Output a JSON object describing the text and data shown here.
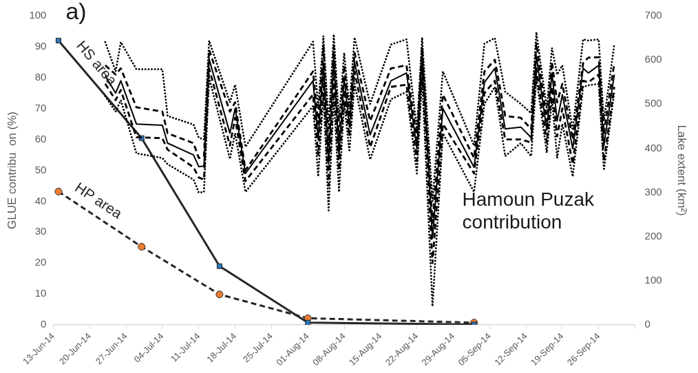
{
  "chart_data": {
    "type": "line",
    "title": "a)",
    "ylabel": "GLUE contribu  on (%)",
    "y2label": "Lake extent (km²)",
    "annotations": [
      "Hamoun Puzak contribution"
    ],
    "x": [
      "--06-23",
      "--06-25",
      "--06-26",
      "--06-29",
      "--07-04",
      "--07-05",
      "--07-10",
      "--07-11",
      "--07-12",
      "--07-13",
      "--07-17",
      "--07-18",
      "--07-20",
      "--08-02",
      "--08-03",
      "--08-04",
      "--08-05",
      "--08-06",
      "--08-07",
      "--08-08",
      "--08-09",
      "--08-10",
      "--08-13",
      "--08-17",
      "--08-20",
      "--08-22",
      "--08-23",
      "--08-25",
      "--08-27",
      "--09-02",
      "--09-04",
      "--09-06",
      "--09-08",
      "--09-11",
      "--09-13",
      "--09-14",
      "--09-16",
      "--09-17",
      "--09-18",
      "--09-19",
      "--09-21",
      "--09-23",
      "--09-24",
      "--09-26",
      "--09-27",
      "--09-29"
    ],
    "series": [
      {
        "color": "#000000",
        "line_style": "dotted",
        "marker": "none",
        "values": [
          91.5,
          82,
          91.5,
          82.7,
          82.7,
          67.6,
          64.8,
          60.6,
          60,
          92,
          72,
          77.7,
          57.6,
          91.6,
          70,
          93.5,
          65,
          94,
          66,
          88,
          70,
          93,
          71.5,
          90.7,
          92.4,
          63,
          93,
          40,
          82,
          58,
          91,
          92.8,
          75.4,
          71.5,
          68.5,
          94.7,
          70,
          89.6,
          81,
          84,
          63,
          92.4,
          92,
          92.4,
          66,
          90.7
        ]
      },
      {
        "color": "#000000",
        "line_style": "dashed",
        "marker": "none",
        "values": [
          84,
          81,
          83,
          70.4,
          69,
          62,
          58.8,
          54,
          54.5,
          89,
          69,
          72,
          50,
          82,
          65,
          90,
          58,
          90,
          60,
          84,
          67,
          88,
          66,
          83,
          84,
          60,
          90,
          33,
          74.5,
          54,
          82,
          85.8,
          67.6,
          67,
          63.4,
          91,
          66,
          85,
          72,
          78,
          60,
          84.7,
          86.5,
          86.6,
          62,
          84.7
        ]
      },
      {
        "color": "#000000",
        "line_style": "solid",
        "marker": "none",
        "values": [
          80.6,
          75,
          79,
          65,
          64.6,
          58.8,
          55,
          51.2,
          51.4,
          86,
          62,
          70,
          49,
          79,
          60,
          85,
          52,
          86,
          55,
          80,
          64,
          85,
          61.5,
          79,
          81.5,
          57,
          88,
          28,
          70,
          51,
          78.5,
          83,
          63.4,
          64,
          60.6,
          87,
          63,
          81.5,
          66,
          74.5,
          57,
          83,
          81.5,
          84,
          58,
          81
        ]
      },
      {
        "color": "#000000",
        "line_style": "dashed",
        "marker": "none",
        "values": [
          78,
          72.7,
          76,
          60.7,
          60.4,
          56.7,
          51,
          47.7,
          47,
          83,
          58,
          67,
          46.5,
          74.5,
          55,
          80,
          45,
          80,
          50,
          76,
          61,
          82,
          57.5,
          77,
          77.7,
          53,
          84,
          20,
          65,
          49,
          75,
          79,
          60,
          60,
          59,
          83,
          59,
          77,
          61,
          70,
          52,
          79,
          78.5,
          81,
          53,
          77
        ]
      },
      {
        "color": "#000000",
        "line_style": "dotted",
        "marker": "none",
        "values": [
          74,
          69,
          72.7,
          55.5,
          54,
          52,
          47,
          42.8,
          43,
          80,
          53.7,
          62,
          43,
          70.8,
          48,
          75,
          37,
          74,
          43,
          72,
          56,
          78,
          53.5,
          73,
          75.4,
          49,
          80,
          6,
          62,
          43,
          71.5,
          77,
          54.6,
          58.8,
          54.6,
          80,
          55.7,
          73,
          54,
          65,
          48,
          77,
          77.5,
          78,
          50,
          75.4
        ]
      },
      {
        "name": "HS area",
        "axis": "y2",
        "color": "#262626",
        "colors": [
          "#2e75b6",
          "#2e75b6",
          "#2e75b6",
          "#2e75b6",
          "#2e75b6"
        ],
        "line_style": "solid",
        "marker": "square",
        "x": [
          "--06-14",
          "--06-30",
          "--07-15",
          "--08-01",
          "--09-02"
        ],
        "values": [
          644,
          423,
          133,
          5,
          1
        ]
      },
      {
        "name": "HP area",
        "axis": "y2",
        "color": "#262626",
        "colors": [
          "#ed7d31",
          "#ed7d31",
          "#ed7d31",
          "#ed7d31",
          "#ed7d31"
        ],
        "line_style": "dashed",
        "marker": "circle",
        "x": [
          "--06-14",
          "--06-30",
          "--07-15",
          "--08-01",
          "--09-02"
        ],
        "values": [
          302,
          177,
          69,
          15,
          5
        ]
      }
    ],
    "xlim": [
      "--06-13",
      "--10-03"
    ],
    "xticks": [
      {
        "value": "--06-13",
        "label": "13-Jun-14"
      },
      {
        "value": "--06-20",
        "label": "20-Jun-14"
      },
      {
        "value": "--06-27",
        "label": "27-Jun-14"
      },
      {
        "value": "--07-04",
        "label": "04-Jul-14"
      },
      {
        "value": "--07-11",
        "label": "11-Jul-14"
      },
      {
        "value": "--07-18",
        "label": "18-Jul-14"
      },
      {
        "value": "--07-25",
        "label": "25-Jul-14"
      },
      {
        "value": "--08-01",
        "label": "01-Aug-14"
      },
      {
        "value": "--08-08",
        "label": "08-Aug-14"
      },
      {
        "value": "--08-15",
        "label": "15-Aug-14"
      },
      {
        "value": "--08-22",
        "label": "22-Aug-14"
      },
      {
        "value": "--08-29",
        "label": "29-Aug-14"
      },
      {
        "value": "--09-05",
        "label": "05-Sep-14"
      },
      {
        "value": "--09-12",
        "label": "12-Sep-14"
      },
      {
        "value": "--09-19",
        "label": "19-Sep-14"
      },
      {
        "value": "--09-26",
        "label": "26-Sep-14"
      },
      {
        "value": "--10-03",
        "label": null
      }
    ],
    "ylim": [
      0,
      100
    ],
    "yticks": [
      0,
      10,
      20,
      30,
      40,
      50,
      60,
      70,
      80,
      90,
      100
    ],
    "y2lim": [
      0,
      700
    ],
    "y2ticks": [
      0,
      100,
      200,
      300,
      400,
      500,
      600,
      700
    ],
    "legend": false
  }
}
